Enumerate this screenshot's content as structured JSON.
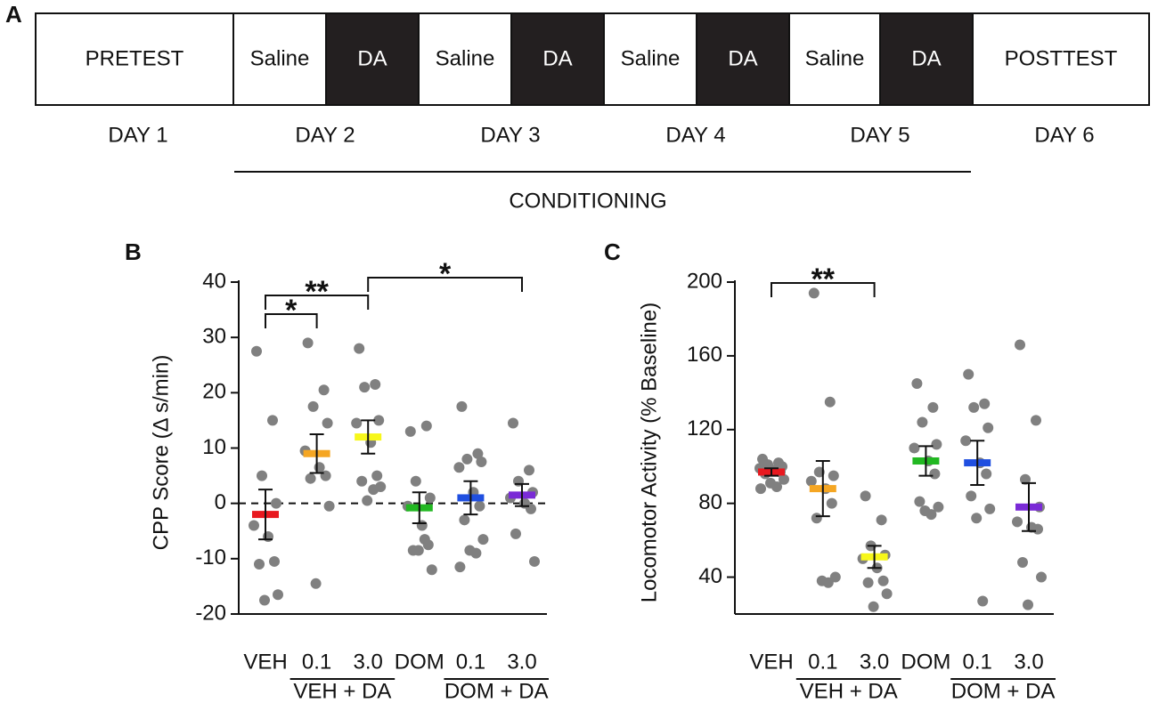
{
  "protocol": {
    "panel": "A",
    "cells": [
      {
        "label": "PRETEST",
        "dark": false
      },
      {
        "label": "Saline",
        "dark": false
      },
      {
        "label": "DA",
        "dark": true
      },
      {
        "label": "Saline",
        "dark": false
      },
      {
        "label": "DA",
        "dark": true
      },
      {
        "label": "Saline",
        "dark": false
      },
      {
        "label": "DA",
        "dark": true
      },
      {
        "label": "Saline",
        "dark": false
      },
      {
        "label": "DA",
        "dark": true
      },
      {
        "label": "POSTTEST",
        "dark": false
      }
    ],
    "days": [
      "DAY 1",
      "DAY 2",
      "DAY 3",
      "DAY 4",
      "DAY 5",
      "DAY 6"
    ],
    "conditioning": "CONDITIONING"
  },
  "chart_data": [
    {
      "type": "dot",
      "panel": "B",
      "ylabel": "CPP Score (Δ s/min)",
      "categories": [
        "VEH",
        "0.1",
        "3.0",
        "DOM",
        "0.1",
        "3.0"
      ],
      "groups": [
        {
          "label": "VEH + DA",
          "members": [
            1,
            2
          ]
        },
        {
          "label": "DOM + DA",
          "members": [
            4,
            5
          ]
        }
      ],
      "means": [
        -2,
        9,
        12,
        -0.8,
        1,
        1.5
      ],
      "errors": [
        4.5,
        3.5,
        3,
        2.8,
        3,
        2
      ],
      "colors": [
        "#e8191f",
        "#f5a623",
        "#f7f71a",
        "#22b822",
        "#1f4fe0",
        "#7a2ad6"
      ],
      "points": [
        [
          27.5,
          15,
          5,
          0,
          -4,
          -6,
          -10.5,
          -11,
          -16.5,
          -17.5
        ],
        [
          29,
          20.5,
          17.5,
          14.5,
          9.5,
          6.5,
          5,
          4.5,
          -0.5,
          -14.5
        ],
        [
          28,
          21.5,
          21,
          15,
          14.5,
          11,
          5,
          4,
          3,
          0.5,
          2.5
        ],
        [
          13,
          14,
          4,
          1,
          -0.5,
          -4,
          -7.5,
          -8.5,
          -12,
          -8.5,
          -6.5
        ],
        [
          17.5,
          9,
          8,
          7.5,
          6.5,
          2,
          -0.5,
          -3,
          -6.5,
          -8.5,
          -9,
          -11.5
        ],
        [
          14.5,
          6,
          4,
          2,
          1,
          0,
          -1,
          -5.5,
          -10.5
        ]
      ],
      "reference_line": 0,
      "significance": [
        {
          "from": 0,
          "to": 1,
          "label": "*"
        },
        {
          "from": 0,
          "to": 2,
          "label": "**"
        },
        {
          "from": 2,
          "to": 5,
          "label": "*"
        }
      ],
      "ylim": [
        -20,
        40
      ],
      "yticks": [
        -20,
        -10,
        0,
        10,
        20,
        30,
        40
      ]
    },
    {
      "type": "dot",
      "panel": "C",
      "ylabel": "Locomotor Activity (% Baseline)",
      "categories": [
        "VEH",
        "0.1",
        "3.0",
        "DOM",
        "0.1",
        "3.0"
      ],
      "groups": [
        {
          "label": "VEH + DA",
          "members": [
            1,
            2
          ]
        },
        {
          "label": "DOM + DA",
          "members": [
            4,
            5
          ]
        }
      ],
      "means": [
        97,
        88,
        51,
        103,
        102,
        78
      ],
      "errors": [
        2,
        15,
        6,
        8,
        12,
        13
      ],
      "colors": [
        "#e8191f",
        "#f5a623",
        "#f7f71a",
        "#22b822",
        "#1f4fe0",
        "#7a2ad6"
      ],
      "points": [
        [
          104,
          102,
          101,
          100,
          99,
          98,
          97,
          96,
          93,
          91,
          89,
          88
        ],
        [
          194,
          135,
          97,
          95,
          92,
          88,
          80,
          72,
          40,
          38,
          37
        ],
        [
          84,
          71,
          57,
          52,
          50,
          45,
          38,
          37,
          31,
          24
        ],
        [
          145,
          132,
          124,
          112,
          110,
          103,
          96,
          81,
          78,
          76,
          74
        ],
        [
          150,
          134,
          132,
          121,
          114,
          102,
          96,
          84,
          77,
          72,
          27
        ],
        [
          166,
          125,
          93,
          78,
          70,
          67,
          66,
          48,
          40,
          25
        ]
      ],
      "significance": [
        {
          "from": 0,
          "to": 2,
          "label": "**"
        }
      ],
      "ylim": [
        20,
        200
      ],
      "yticks": [
        40,
        80,
        120,
        160,
        200
      ]
    }
  ]
}
